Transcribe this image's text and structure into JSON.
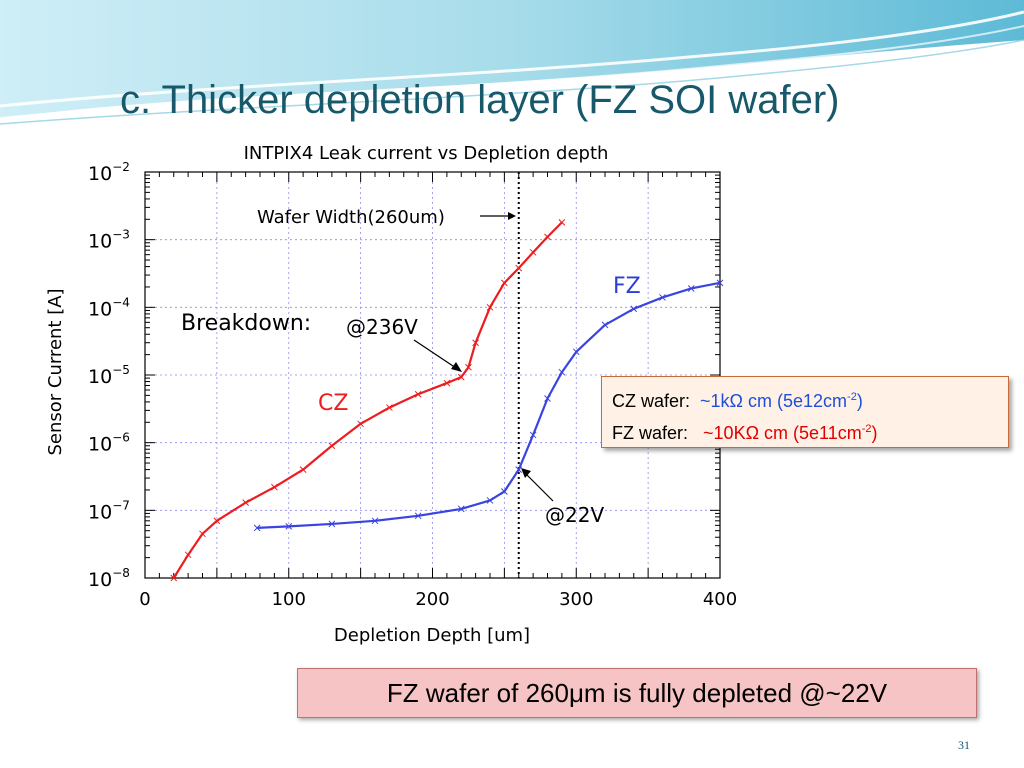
{
  "slide": {
    "title": "c. Thicker depletion layer (FZ SOI wafer)",
    "page_number": "31",
    "colors": {
      "title": "#17586b",
      "banner_light": "#bfe7f2",
      "banner_dark": "#4fb3cf"
    }
  },
  "annotations": {
    "breakdown_label": "Breakdown:",
    "breakdown_voltage": "@236V",
    "fz_voltage": "@22V",
    "wafer_width": "Wafer Width(260um)"
  },
  "info_box": {
    "cz_label": "CZ wafer:",
    "cz_value": "~1kΩ cm (5e12cm",
    "cz_exp": "-2",
    "cz_close": ")",
    "fz_label": "FZ wafer:",
    "fz_value": "~10KΩ cm (5e11cm",
    "fz_exp": "-2",
    "fz_close": ")"
  },
  "conclusion": "FZ wafer of 260μm is fully depleted @~22V",
  "chart_data": {
    "type": "line",
    "title": "INTPIX4 Leak current vs Depletion depth",
    "xlabel": "Depletion Depth [um]",
    "ylabel": "Sensor Current [A]",
    "xlim": [
      0,
      400
    ],
    "ylim": [
      1e-08,
      0.01
    ],
    "yscale": "log",
    "xticks": [
      "0",
      "100",
      "200",
      "300",
      "400"
    ],
    "yticks": [
      {
        "base": "10",
        "exp": "−2"
      },
      {
        "base": "10",
        "exp": "−3"
      },
      {
        "base": "10",
        "exp": "−4"
      },
      {
        "base": "10",
        "exp": "−5"
      },
      {
        "base": "10",
        "exp": "−6"
      },
      {
        "base": "10",
        "exp": "−7"
      },
      {
        "base": "10",
        "exp": "−8"
      }
    ],
    "ytick_values": [
      0.01,
      0.001,
      0.0001,
      1e-05,
      1e-06,
      1e-07,
      1e-08
    ],
    "grid": true,
    "vline": {
      "x": 260,
      "style": "dotted"
    },
    "series": [
      {
        "name": "CZ",
        "color": "#ee1c1c",
        "marker": "x",
        "x": [
          20,
          30,
          40,
          50,
          70,
          90,
          110,
          130,
          150,
          170,
          190,
          210,
          220,
          225,
          230,
          240,
          250,
          260,
          270,
          280,
          290
        ],
        "y": [
          1e-08,
          2.2e-08,
          4.5e-08,
          7e-08,
          1.3e-07,
          2.2e-07,
          4e-07,
          9e-07,
          1.9e-06,
          3.3e-06,
          5.2e-06,
          7.6e-06,
          9.3e-06,
          1.3e-05,
          3e-05,
          0.0001,
          0.00023,
          0.00038,
          0.00065,
          0.0011,
          0.0018
        ]
      },
      {
        "name": "FZ",
        "color": "#3a44e0",
        "marker": "x",
        "x": [
          78,
          100,
          130,
          160,
          190,
          220,
          240,
          250,
          260,
          270,
          280,
          290,
          300,
          320,
          340,
          360,
          380,
          400
        ],
        "y": [
          5.5e-08,
          5.8e-08,
          6.3e-08,
          7e-08,
          8.3e-08,
          1.05e-07,
          1.4e-07,
          1.9e-07,
          4e-07,
          1.3e-06,
          4.5e-06,
          1.1e-05,
          2.2e-05,
          5.5e-05,
          9.5e-05,
          0.00014,
          0.00019,
          0.00023
        ]
      }
    ]
  }
}
